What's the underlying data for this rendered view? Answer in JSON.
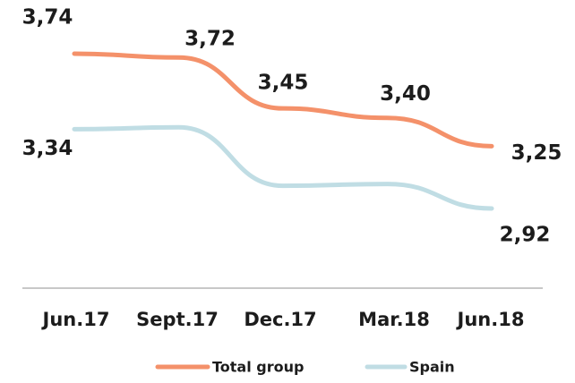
{
  "chart_data": {
    "type": "line",
    "categories": [
      "Jun.17",
      "Sept.17",
      "Dec.17",
      "Mar.18",
      "Jun.18"
    ],
    "series": [
      {
        "name": "Total group",
        "color": "#f4916a",
        "values": [
          3.74,
          3.72,
          3.45,
          3.4,
          3.25
        ],
        "value_labels": [
          "3,74",
          "3,72",
          "3,45",
          "3,40",
          "3,25"
        ]
      },
      {
        "name": "Spain",
        "color": "#c0dde4",
        "values": [
          3.34,
          3.35,
          3.04,
          3.05,
          2.92
        ],
        "value_labels": [
          "3,34",
          null,
          null,
          null,
          "2,92"
        ]
      }
    ]
  }
}
